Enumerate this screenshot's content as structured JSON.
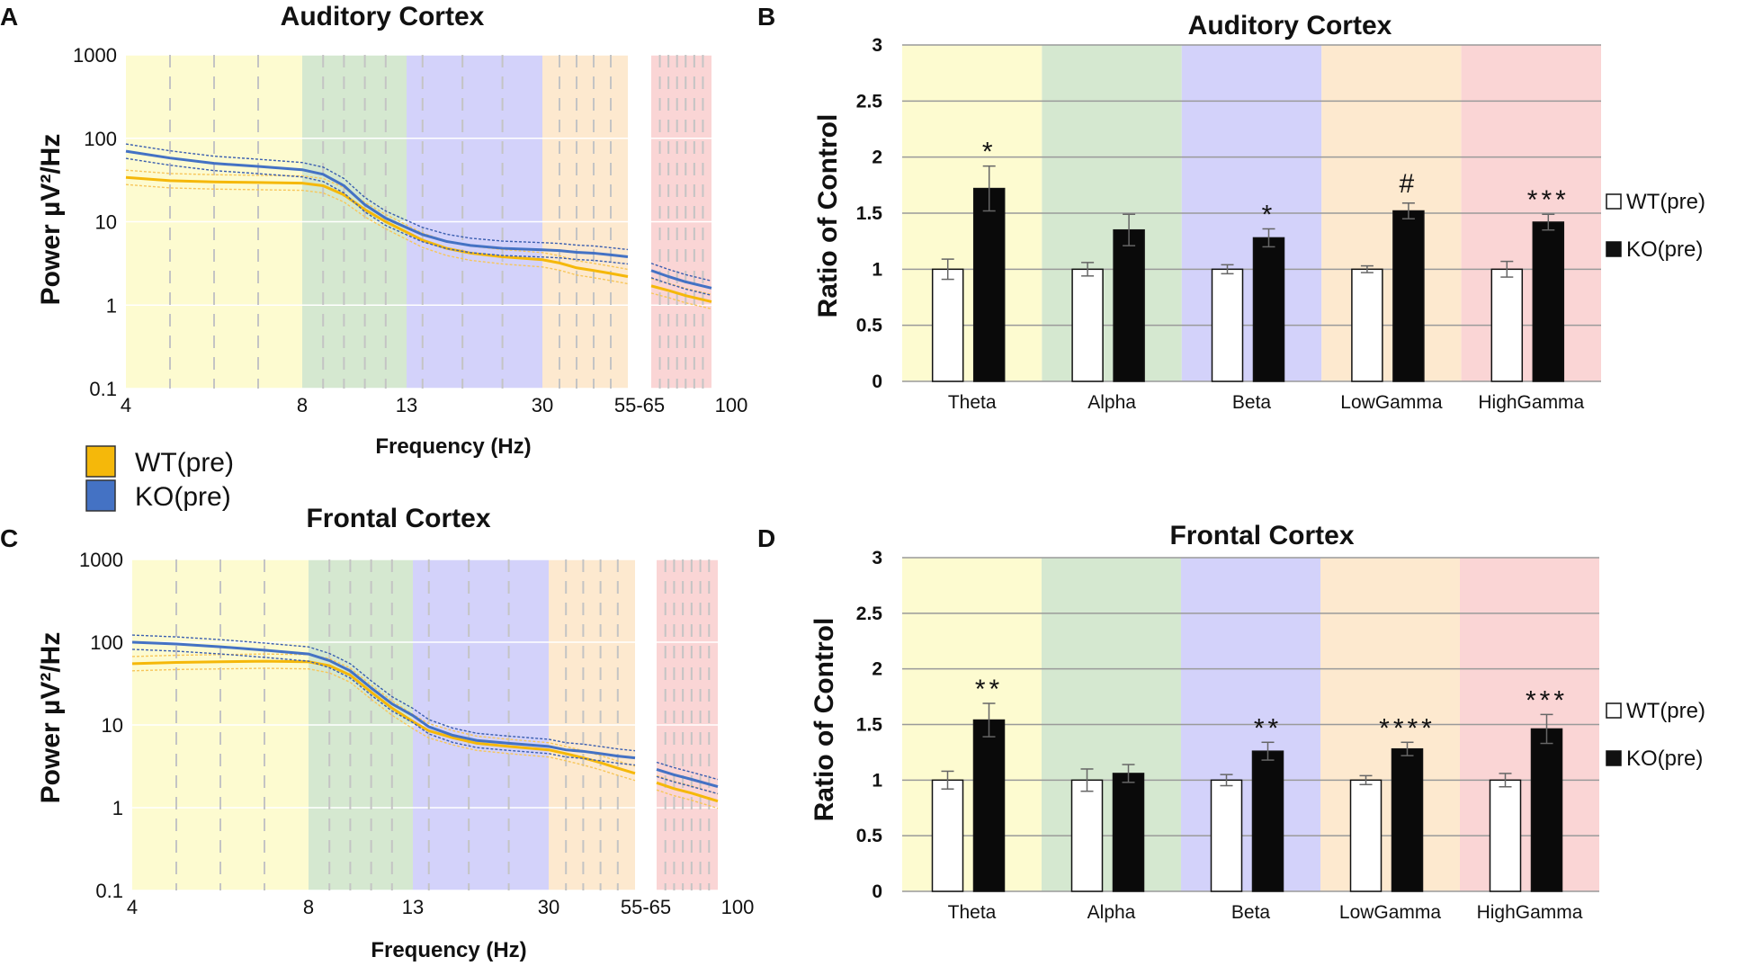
{
  "figure": {
    "legend_left": {
      "wt": "WT(pre)",
      "ko": "KO(pre)"
    },
    "colors": {
      "wt": "#f5b80a",
      "ko": "#4472c4",
      "wt_ci": "#f7c65a",
      "ko_ci": "#3a5eb0",
      "theta": "#fdfbd0",
      "alpha": "#d5e8d0",
      "beta": "#d3d2fa",
      "lowgamma": "#fde9cf",
      "highgamma": "#fad5d5",
      "grid_dash": "#c4c4c4"
    }
  },
  "chart_data": [
    {
      "panel": "A",
      "type": "line",
      "title": "Auditory Cortex",
      "xlabel": "Frequency (Hz)",
      "ylabel": "Power µV²/Hz",
      "yscale": "log",
      "ylim": [
        0.1,
        1000
      ],
      "y_ticks": [
        "0.1",
        "1",
        "10",
        "100",
        "1000"
      ],
      "x_ticks": [
        "4",
        "8",
        "13",
        "30",
        "55-65",
        "100"
      ],
      "series": [
        {
          "name": "WT(pre)",
          "x": [
            4,
            5,
            6,
            7,
            8,
            9,
            10,
            11,
            12,
            13,
            15,
            18,
            21,
            25,
            30,
            35,
            40,
            45,
            50,
            55,
            65,
            75,
            85,
            100
          ],
          "values": [
            34,
            31,
            30,
            29.5,
            29,
            27,
            21,
            14,
            10,
            7.5,
            6,
            4.8,
            4.2,
            3.8,
            3.5,
            3.2,
            2.8,
            2.6,
            2.4,
            2.2,
            1.7,
            1.5,
            1.3,
            1.1
          ]
        },
        {
          "name": "KO(pre)",
          "x": [
            4,
            5,
            6,
            7,
            8,
            9,
            10,
            11,
            12,
            13,
            15,
            18,
            21,
            25,
            30,
            35,
            40,
            45,
            50,
            55,
            65,
            75,
            85,
            100
          ],
          "values": [
            70,
            58,
            50,
            46,
            42,
            37,
            27,
            16,
            11,
            8.5,
            7,
            5.8,
            5.2,
            4.8,
            4.6,
            4.5,
            4.3,
            4.2,
            4.0,
            3.8,
            2.6,
            2.2,
            1.9,
            1.6
          ]
        }
      ]
    },
    {
      "panel": "B",
      "type": "bar",
      "title": "Auditory Cortex",
      "ylabel": "Ratio of Control",
      "ylim": [
        0,
        3
      ],
      "y_ticks": [
        "0",
        "0.5",
        "1",
        "1.5",
        "2",
        "2.5",
        "3"
      ],
      "categories": [
        "Theta",
        "Alpha",
        "Beta",
        "LowGamma",
        "HighGamma"
      ],
      "series": [
        {
          "name": "WT(pre)",
          "values": [
            1.0,
            1.0,
            1.0,
            1.0,
            1.0
          ],
          "errors": [
            0.09,
            0.06,
            0.04,
            0.03,
            0.07
          ]
        },
        {
          "name": "KO(pre)",
          "values": [
            1.72,
            1.35,
            1.28,
            1.52,
            1.42
          ],
          "errors": [
            0.2,
            0.14,
            0.08,
            0.07,
            0.07
          ]
        }
      ],
      "significance": [
        "*",
        "",
        "*",
        "#",
        "***"
      ]
    },
    {
      "panel": "C",
      "type": "line",
      "title": "Frontal Cortex",
      "xlabel": "Frequency (Hz)",
      "ylabel": "Power µV²/Hz",
      "yscale": "log",
      "ylim": [
        0.1,
        1000
      ],
      "y_ticks": [
        "0.1",
        "1",
        "10",
        "100",
        "1000"
      ],
      "x_ticks": [
        "4",
        "8",
        "13",
        "30",
        "55-65",
        "100"
      ],
      "series": [
        {
          "name": "WT(pre)",
          "x": [
            4,
            5,
            6,
            7,
            8,
            9,
            10,
            11,
            12,
            13,
            15,
            18,
            21,
            25,
            30,
            35,
            40,
            45,
            50,
            55,
            65,
            75,
            85,
            100
          ],
          "values": [
            55,
            57,
            58,
            59,
            58,
            52,
            40,
            25,
            16,
            11,
            8.5,
            7,
            6,
            5.5,
            5,
            4.5,
            4,
            3.5,
            3,
            2.6,
            2.0,
            1.7,
            1.5,
            1.2
          ]
        },
        {
          "name": "KO(pre)",
          "x": [
            4,
            5,
            6,
            7,
            8,
            9,
            10,
            11,
            12,
            13,
            15,
            18,
            21,
            25,
            30,
            35,
            40,
            45,
            50,
            55,
            65,
            75,
            85,
            100
          ],
          "values": [
            100,
            95,
            88,
            80,
            72,
            60,
            45,
            28,
            18,
            13,
            9.5,
            7.5,
            6.5,
            6,
            5.5,
            5,
            4.8,
            4.5,
            4.2,
            4.0,
            2.9,
            2.5,
            2.2,
            1.8
          ]
        }
      ]
    },
    {
      "panel": "D",
      "type": "bar",
      "title": "Frontal Cortex",
      "ylabel": "Ratio of Control",
      "ylim": [
        0,
        3
      ],
      "y_ticks": [
        "0",
        "0.5",
        "1",
        "1.5",
        "2",
        "2.5",
        "3"
      ],
      "categories": [
        "Theta",
        "Alpha",
        "Beta",
        "LowGamma",
        "HighGamma"
      ],
      "series": [
        {
          "name": "WT(pre)",
          "values": [
            1.0,
            1.0,
            1.0,
            1.0,
            1.0
          ],
          "errors": [
            0.08,
            0.1,
            0.05,
            0.04,
            0.06
          ]
        },
        {
          "name": "KO(pre)",
          "values": [
            1.54,
            1.06,
            1.26,
            1.28,
            1.46
          ],
          "errors": [
            0.15,
            0.08,
            0.08,
            0.06,
            0.13
          ]
        }
      ],
      "significance": [
        "**",
        "",
        "**",
        "****",
        "***"
      ]
    }
  ]
}
